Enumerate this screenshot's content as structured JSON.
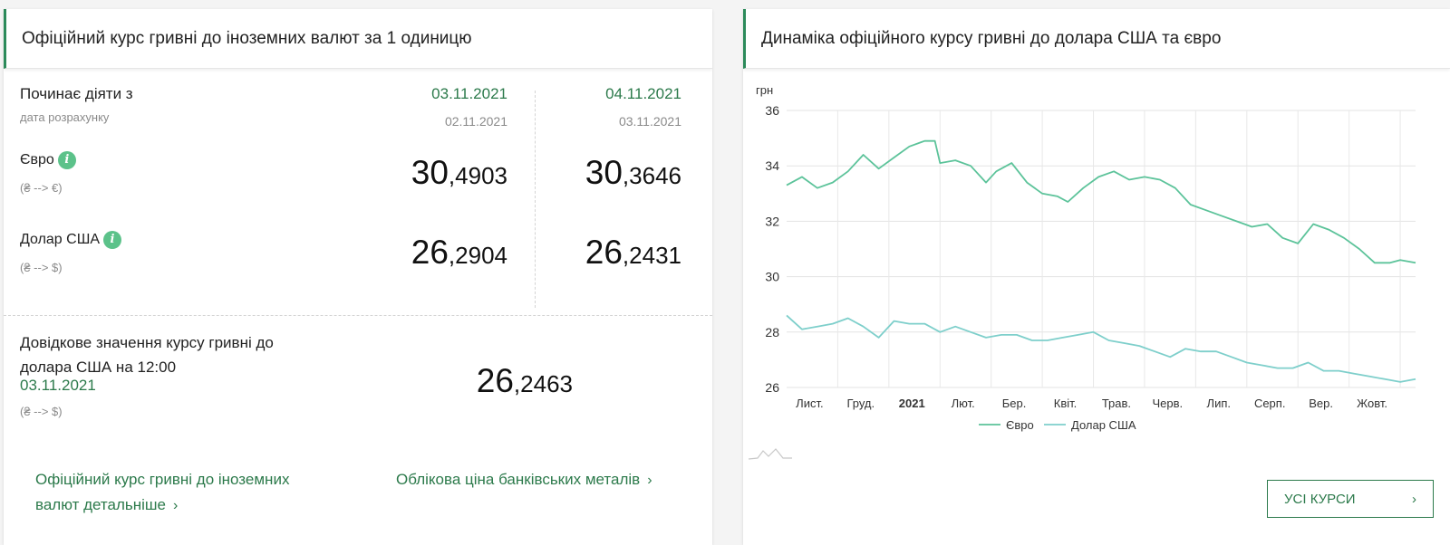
{
  "left": {
    "title": "Офіційний курс гривні до іноземних валют за 1 одиницю",
    "starts_label": "Починає діяти з",
    "calc_label": "дата розрахунку",
    "col1": {
      "date": "03.11.2021",
      "calc_date": "02.11.2021"
    },
    "col2": {
      "date": "04.11.2021",
      "calc_date": "03.11.2021"
    },
    "euro": {
      "label": "Євро",
      "info_icon": "i",
      "direction": "(₴ --> €)",
      "rate1_int": "30",
      "rate1_frac": ",4903",
      "rate2_int": "30",
      "rate2_frac": ",3646"
    },
    "usd": {
      "label": "Долар США",
      "info_icon": "i",
      "direction": "(₴ --> $)",
      "rate1_int": "26",
      "rate1_frac": ",2904",
      "rate2_int": "26",
      "rate2_frac": ",2431"
    },
    "reference": {
      "line1": "Довідкове значення курсу гривні до",
      "line2": "долара США на 12:00",
      "date": "03.11.2021",
      "direction": "(₴ --> $)",
      "rate_int": "26",
      "rate_frac": ",2463"
    },
    "links": {
      "detail_line1": "Офіційний курс гривні до іноземних",
      "detail_line2": "валют детальніше",
      "metals": "Облікова ціна банківських металів",
      "chevron": "›"
    }
  },
  "right": {
    "title": "Динаміка офіційного курсу гривні до долара США та євро",
    "button_label": "УСІ КУРСИ",
    "button_chevron": "›",
    "chart_data": {
      "type": "line",
      "ylabel": "грн",
      "ylim": [
        26,
        36
      ],
      "y_ticks": [
        "26",
        "28",
        "30",
        "32",
        "34",
        "36"
      ],
      "x_ticks": [
        "Лист.",
        "Груд.",
        "2021",
        "Лют.",
        "Бер.",
        "Квіт.",
        "Трав.",
        "Черв.",
        "Лип.",
        "Серп.",
        "Вер.",
        "Жовт."
      ],
      "x_range": [
        0,
        12.3
      ],
      "grid": true,
      "legend_position": "bottom",
      "series": [
        {
          "name": "Євро",
          "color": "#5cc39a",
          "points": [
            [
              0.0,
              33.3
            ],
            [
              0.3,
              33.6
            ],
            [
              0.6,
              33.2
            ],
            [
              0.9,
              33.4
            ],
            [
              1.2,
              33.8
            ],
            [
              1.5,
              34.4
            ],
            [
              1.8,
              33.9
            ],
            [
              2.1,
              34.3
            ],
            [
              2.4,
              34.7
            ],
            [
              2.7,
              34.9
            ],
            [
              2.9,
              34.9
            ],
            [
              3.0,
              34.1
            ],
            [
              3.3,
              34.2
            ],
            [
              3.6,
              34.0
            ],
            [
              3.9,
              33.4
            ],
            [
              4.1,
              33.8
            ],
            [
              4.4,
              34.1
            ],
            [
              4.7,
              33.4
            ],
            [
              5.0,
              33.0
            ],
            [
              5.3,
              32.9
            ],
            [
              5.5,
              32.7
            ],
            [
              5.8,
              33.2
            ],
            [
              6.1,
              33.6
            ],
            [
              6.4,
              33.8
            ],
            [
              6.7,
              33.5
            ],
            [
              7.0,
              33.6
            ],
            [
              7.3,
              33.5
            ],
            [
              7.6,
              33.2
            ],
            [
              7.9,
              32.6
            ],
            [
              8.2,
              32.4
            ],
            [
              8.5,
              32.2
            ],
            [
              8.8,
              32.0
            ],
            [
              9.1,
              31.8
            ],
            [
              9.4,
              31.9
            ],
            [
              9.7,
              31.4
            ],
            [
              10.0,
              31.2
            ],
            [
              10.3,
              31.9
            ],
            [
              10.6,
              31.7
            ],
            [
              10.9,
              31.4
            ],
            [
              11.2,
              31.0
            ],
            [
              11.5,
              30.5
            ],
            [
              11.8,
              30.5
            ],
            [
              12.0,
              30.6
            ],
            [
              12.3,
              30.5
            ]
          ]
        },
        {
          "name": "Долар США",
          "color": "#7ecfcb",
          "points": [
            [
              0.0,
              28.6
            ],
            [
              0.3,
              28.1
            ],
            [
              0.6,
              28.2
            ],
            [
              0.9,
              28.3
            ],
            [
              1.2,
              28.5
            ],
            [
              1.5,
              28.2
            ],
            [
              1.8,
              27.8
            ],
            [
              2.1,
              28.4
            ],
            [
              2.4,
              28.3
            ],
            [
              2.7,
              28.3
            ],
            [
              3.0,
              28.0
            ],
            [
              3.3,
              28.2
            ],
            [
              3.6,
              28.0
            ],
            [
              3.9,
              27.8
            ],
            [
              4.2,
              27.9
            ],
            [
              4.5,
              27.9
            ],
            [
              4.8,
              27.7
            ],
            [
              5.1,
              27.7
            ],
            [
              5.4,
              27.8
            ],
            [
              5.7,
              27.9
            ],
            [
              6.0,
              28.0
            ],
            [
              6.3,
              27.7
            ],
            [
              6.6,
              27.6
            ],
            [
              6.9,
              27.5
            ],
            [
              7.2,
              27.3
            ],
            [
              7.5,
              27.1
            ],
            [
              7.8,
              27.4
            ],
            [
              8.1,
              27.3
            ],
            [
              8.4,
              27.3
            ],
            [
              8.7,
              27.1
            ],
            [
              9.0,
              26.9
            ],
            [
              9.3,
              26.8
            ],
            [
              9.6,
              26.7
            ],
            [
              9.9,
              26.7
            ],
            [
              10.2,
              26.9
            ],
            [
              10.5,
              26.6
            ],
            [
              10.8,
              26.6
            ],
            [
              11.1,
              26.5
            ],
            [
              11.4,
              26.4
            ],
            [
              11.7,
              26.3
            ],
            [
              12.0,
              26.2
            ],
            [
              12.3,
              26.3
            ]
          ]
        }
      ]
    }
  }
}
